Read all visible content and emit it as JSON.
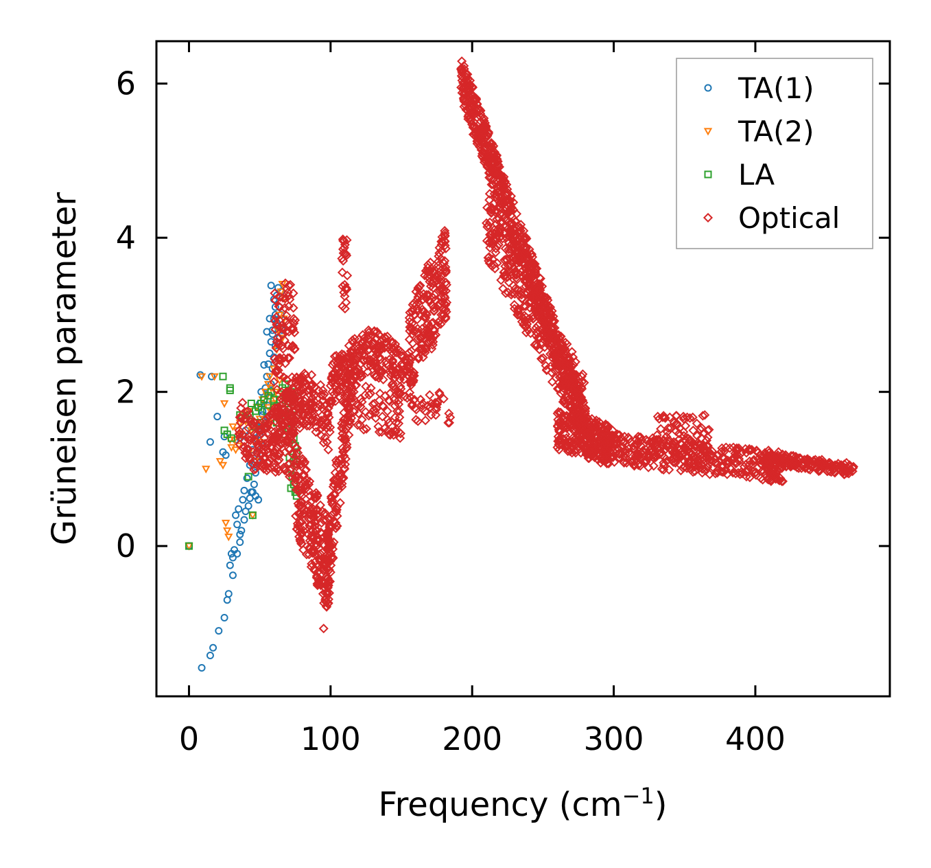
{
  "chart_data": {
    "type": "scatter",
    "title": "",
    "xlabel": "Frequency (cm",
    "xlabel_sup": "−1",
    "xlabel_close": ")",
    "ylabel": "Grüneisen parameter",
    "xlim": [
      -23,
      495
    ],
    "ylim": [
      -1.95,
      6.55
    ],
    "xticks": [
      0,
      100,
      200,
      300,
      400
    ],
    "xtick_labels": [
      "0",
      "100",
      "200",
      "300",
      "400"
    ],
    "yticks": [
      0,
      2,
      4,
      6
    ],
    "ytick_labels": [
      "0",
      "2",
      "4",
      "6"
    ],
    "grid": false,
    "legend_position": "top-right",
    "series": [
      {
        "name": "TA(1)",
        "marker": "circle",
        "color": "#1f77b4",
        "points": [
          [
            0,
            0
          ],
          [
            9,
            -1.58
          ],
          [
            15,
            -1.42
          ],
          [
            17,
            -1.32
          ],
          [
            21,
            -1.1
          ],
          [
            25,
            -0.93
          ],
          [
            27,
            -0.7
          ],
          [
            28,
            -0.62
          ],
          [
            31,
            -0.38
          ],
          [
            30,
            -0.1
          ],
          [
            32,
            -0.05
          ],
          [
            34,
            -0.1
          ],
          [
            36,
            0.05
          ],
          [
            37,
            0.2
          ],
          [
            39,
            0.34
          ],
          [
            40,
            0.45
          ],
          [
            42,
            0.52
          ],
          [
            43,
            0.62
          ],
          [
            45,
            0.7
          ],
          [
            46,
            0.8
          ],
          [
            47,
            0.95
          ],
          [
            48,
            1.1
          ],
          [
            49,
            1.3
          ],
          [
            50,
            1.45
          ],
          [
            51,
            1.6
          ],
          [
            52,
            1.75
          ],
          [
            53,
            1.9
          ],
          [
            54,
            2.05
          ],
          [
            55,
            2.2
          ],
          [
            56,
            2.36
          ],
          [
            57,
            2.5
          ],
          [
            58,
            2.65
          ],
          [
            59,
            2.8
          ],
          [
            60,
            2.95
          ],
          [
            61,
            3.1
          ],
          [
            62,
            3.25
          ],
          [
            63,
            3.35
          ],
          [
            58,
            3.38
          ],
          [
            60,
            3.2
          ],
          [
            61,
            3.0
          ],
          [
            63,
            2.85
          ],
          [
            64,
            2.7
          ],
          [
            66,
            2.8
          ],
          [
            65,
            3.0
          ],
          [
            8,
            2.22
          ],
          [
            16,
            2.2
          ],
          [
            20,
            1.68
          ],
          [
            15,
            1.35
          ],
          [
            24,
            1.22
          ],
          [
            25,
            1.42
          ],
          [
            26,
            1.18
          ],
          [
            33,
            1.38
          ],
          [
            36,
            1.4
          ],
          [
            38,
            1.43
          ],
          [
            40,
            1.5
          ],
          [
            44,
            0.7
          ],
          [
            47,
            0.65
          ],
          [
            49,
            0.6
          ],
          [
            46,
            1.05
          ],
          [
            48,
            1.2
          ],
          [
            52,
            1.3
          ],
          [
            54,
            1.55
          ],
          [
            55,
            1.68
          ],
          [
            56,
            1.82
          ],
          [
            57,
            1.95
          ],
          [
            58,
            2.1
          ],
          [
            59,
            2.3
          ],
          [
            60,
            2.45
          ],
          [
            61,
            2.6
          ],
          [
            57,
            2.95
          ],
          [
            59,
            2.75
          ],
          [
            62,
            2.9
          ],
          [
            64,
            3.1
          ],
          [
            65,
            3.3
          ],
          [
            55,
            2.78
          ],
          [
            53,
            2.35
          ],
          [
            51,
            2.0
          ],
          [
            50,
            1.85
          ],
          [
            52,
            1.7
          ],
          [
            49,
            1.55
          ],
          [
            47,
            1.4
          ],
          [
            45,
            1.25
          ],
          [
            43,
            1.05
          ],
          [
            41,
            0.88
          ],
          [
            39,
            0.72
          ],
          [
            38,
            0.6
          ],
          [
            35,
            0.48
          ],
          [
            33,
            0.4
          ],
          [
            34,
            0.28
          ],
          [
            36,
            0.15
          ],
          [
            31,
            -0.15
          ],
          [
            29,
            -0.25
          ]
        ]
      },
      {
        "name": "TA(2)",
        "marker": "triangle-down",
        "color": "#ff7f0e",
        "points": [
          [
            0,
            0
          ],
          [
            9,
            2.2
          ],
          [
            12,
            1.0
          ],
          [
            18,
            2.2
          ],
          [
            22,
            1.1
          ],
          [
            24,
            1.05
          ],
          [
            26,
            0.3
          ],
          [
            27,
            0.2
          ],
          [
            28,
            0.12
          ],
          [
            30,
            1.28
          ],
          [
            32,
            1.38
          ],
          [
            33,
            1.25
          ],
          [
            34,
            1.5
          ],
          [
            35,
            1.3
          ],
          [
            36,
            1.6
          ],
          [
            38,
            1.7
          ],
          [
            40,
            1.62
          ],
          [
            42,
            1.75
          ],
          [
            44,
            1.5
          ],
          [
            45,
            0.4
          ],
          [
            46,
            1.35
          ],
          [
            48,
            1.8
          ],
          [
            50,
            1.65
          ],
          [
            52,
            1.9
          ],
          [
            54,
            2.0
          ],
          [
            55,
            1.95
          ],
          [
            56,
            2.1
          ],
          [
            57,
            2.2
          ],
          [
            58,
            2.05
          ],
          [
            59,
            1.85
          ],
          [
            60,
            2.3
          ],
          [
            61,
            2.0
          ],
          [
            62,
            1.8
          ],
          [
            63,
            1.95
          ],
          [
            64,
            2.15
          ],
          [
            65,
            2.4
          ],
          [
            66,
            2.7
          ],
          [
            67,
            2.95
          ],
          [
            68,
            3.2
          ],
          [
            66,
            3.4
          ],
          [
            65,
            3.3
          ],
          [
            64,
            3.0
          ],
          [
            63,
            2.8
          ],
          [
            62,
            2.55
          ],
          [
            61,
            1.9
          ],
          [
            60,
            1.75
          ],
          [
            58,
            1.6
          ],
          [
            56,
            1.8
          ],
          [
            25,
            1.85
          ],
          [
            29,
            1.38
          ],
          [
            31,
            1.55
          ],
          [
            37,
            1.45
          ],
          [
            42,
            1.2
          ],
          [
            47,
            1.1
          ],
          [
            50,
            1.35
          ]
        ]
      },
      {
        "name": "LA",
        "marker": "square",
        "color": "#2ca02c",
        "points": [
          [
            0,
            0
          ],
          [
            24,
            2.2
          ],
          [
            29,
            2.05
          ],
          [
            29,
            2.02
          ],
          [
            25,
            1.5
          ],
          [
            27,
            1.45
          ],
          [
            30,
            1.4
          ],
          [
            36,
            1.7
          ],
          [
            40,
            1.65
          ],
          [
            42,
            0.9
          ],
          [
            44,
            1.85
          ],
          [
            45,
            0.4
          ],
          [
            47,
            1.75
          ],
          [
            49,
            1.8
          ],
          [
            51,
            1.85
          ],
          [
            53,
            1.9
          ],
          [
            56,
            1.95
          ],
          [
            58,
            2.0
          ],
          [
            60,
            1.8
          ],
          [
            62,
            1.6
          ],
          [
            64,
            1.9
          ],
          [
            66,
            2.05
          ],
          [
            68,
            2.1
          ],
          [
            69,
            1.95
          ],
          [
            70,
            1.8
          ],
          [
            71,
            1.7
          ],
          [
            72,
            1.6
          ],
          [
            73,
            1.5
          ],
          [
            74,
            1.4
          ],
          [
            75,
            1.3
          ],
          [
            71,
            1.15
          ],
          [
            72,
            1.0
          ],
          [
            73,
            0.9
          ],
          [
            74,
            0.8
          ],
          [
            75,
            0.7
          ],
          [
            76,
            0.65
          ],
          [
            72,
            0.75
          ],
          [
            74,
            1.1
          ],
          [
            76,
            1.2
          ],
          [
            70,
            1.85
          ],
          [
            72,
            2.0
          ],
          [
            74,
            1.95
          ],
          [
            76,
            1.7
          ],
          [
            68,
            1.45
          ],
          [
            66,
            1.55
          ],
          [
            64,
            1.65
          ],
          [
            62,
            1.75
          ],
          [
            60,
            1.9
          ],
          [
            55,
            1.75
          ],
          [
            50,
            1.6
          ],
          [
            46,
            1.55
          ],
          [
            43,
            1.7
          ]
        ]
      },
      {
        "name": "Optical",
        "marker": "diamond",
        "color": "#d62728",
        "points": []
      }
    ]
  }
}
